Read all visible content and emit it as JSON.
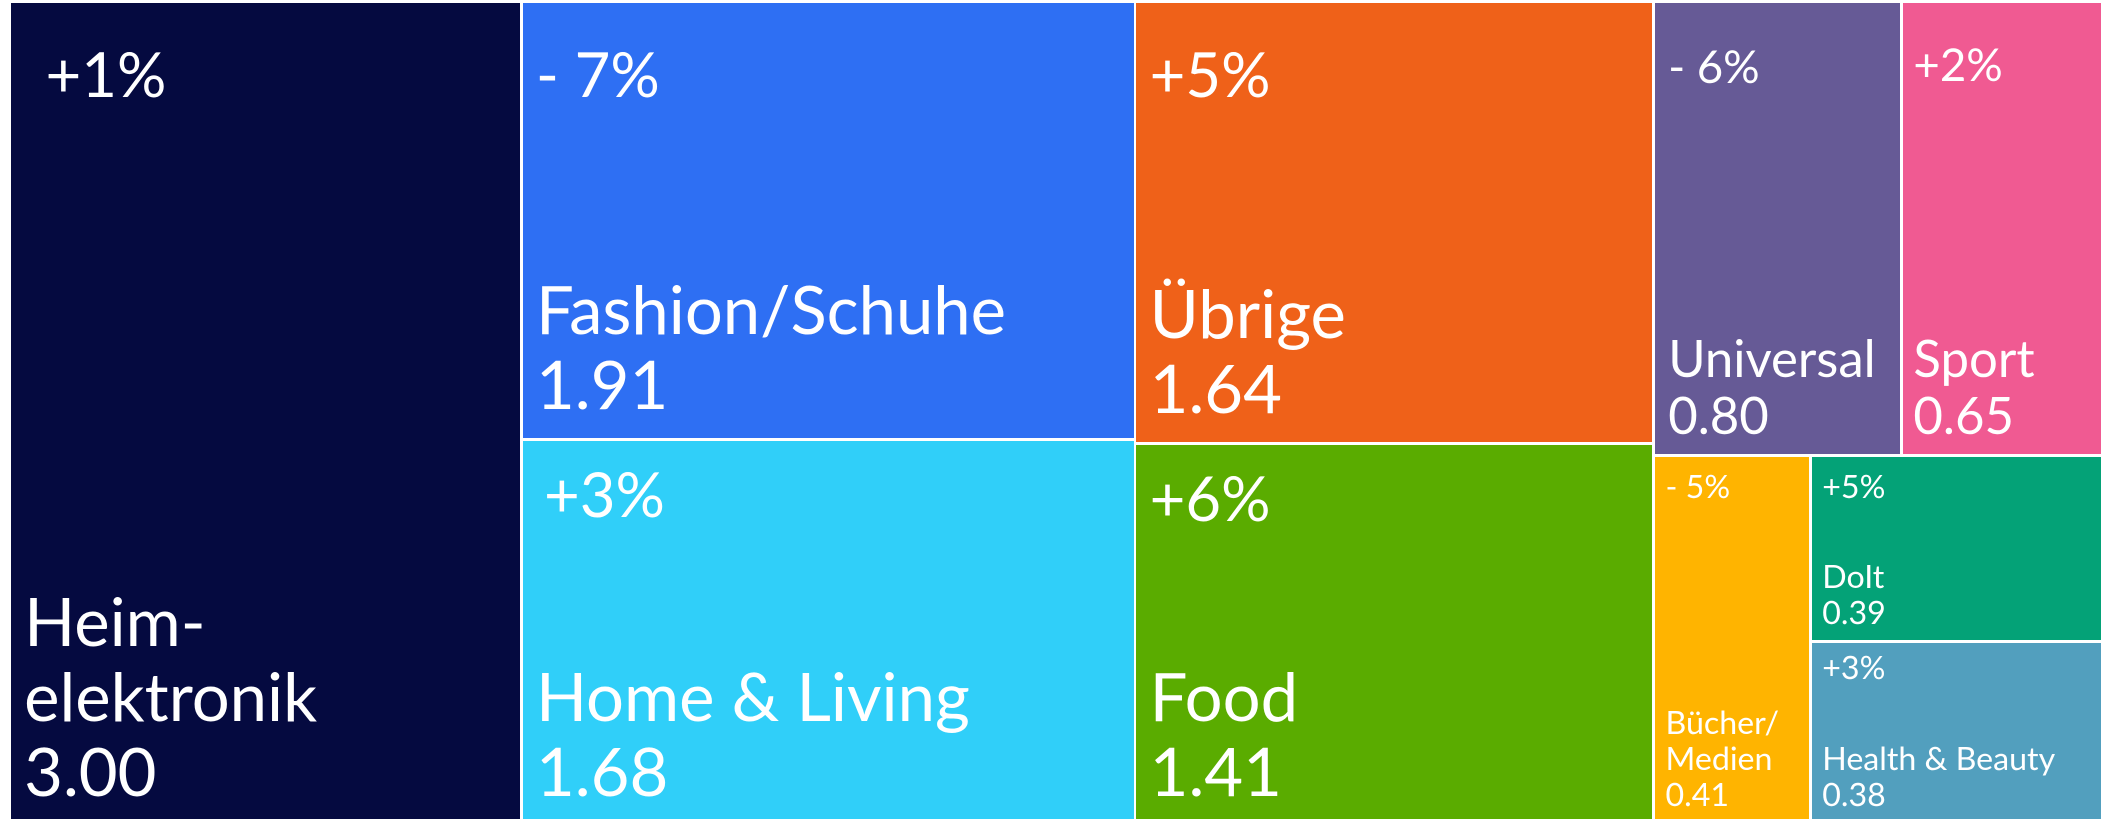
{
  "chart_data": {
    "type": "treemap",
    "categories": [
      "Heim-\nelektronik",
      "Fashion/Schuhe",
      "Home & Living",
      "Übrige",
      "Food",
      "Universal",
      "Sport",
      "Bücher/\nMedien",
      "DoIt",
      "Health & Beauty"
    ],
    "values": [
      3.0,
      1.91,
      1.68,
      1.64,
      1.41,
      0.8,
      0.65,
      0.41,
      0.39,
      0.38
    ],
    "value_labels": [
      "3.00",
      "1.91",
      "1.68",
      "1.64",
      "1.41",
      "0.80",
      "0.65",
      "0.41",
      "0.39",
      "0.38"
    ],
    "changes": [
      "+1%",
      "- 7%",
      "+3%",
      "+5%",
      "+6%",
      "- 6%",
      "+2%",
      "- 5%",
      "+5%",
      "+3%"
    ],
    "colors": [
      "#050a40",
      "#2e6ff3",
      "#30cff9",
      "#ef6119",
      "#5aac00",
      "#665a96",
      "#f05a92",
      "#ffb400",
      "#04a277",
      "#529fbe"
    ]
  }
}
